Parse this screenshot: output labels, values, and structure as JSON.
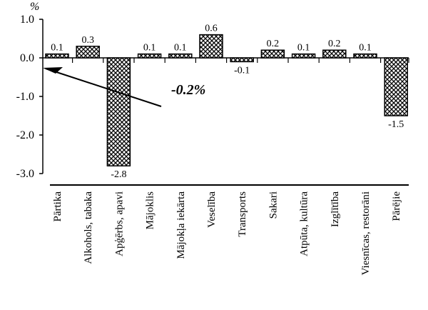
{
  "chart_data": {
    "type": "bar",
    "title": "",
    "xlabel": "",
    "ylabel": "%",
    "ylim": [
      -3.0,
      1.0
    ],
    "yticks": [
      "1.0",
      "0.0",
      "-1.0",
      "-2.0",
      "-3.0"
    ],
    "ytick_values": [
      1.0,
      0.0,
      -1.0,
      -2.0,
      -3.0
    ],
    "grid": false,
    "legend": null,
    "categories": [
      "Pārtika",
      "Alkohols, tabaka",
      "Apģērbs, apavi",
      "Mājoklis",
      "Mājokļa iekārta",
      "Veselība",
      "Transports",
      "Sakari",
      "Atpūta, kultūra",
      "Izglītība",
      "Viesnīcas, restorāni",
      "Pārējie"
    ],
    "values": [
      0.1,
      0.3,
      -2.8,
      0.1,
      0.1,
      0.6,
      -0.1,
      0.2,
      0.1,
      0.2,
      0.1,
      -1.5
    ],
    "value_labels": [
      "0.1",
      "0.3",
      "-2.8",
      "0.1",
      "0.1",
      "0.6",
      "-0.1",
      "0.2",
      "0.1",
      "0.2",
      "0.1",
      "-1.5"
    ],
    "annotations": [
      {
        "text": "-0.2%",
        "arrow_to_y": -0.2,
        "description": "total change indicated by arrow pointing to y axis"
      }
    ],
    "pattern": "crosshatch"
  }
}
